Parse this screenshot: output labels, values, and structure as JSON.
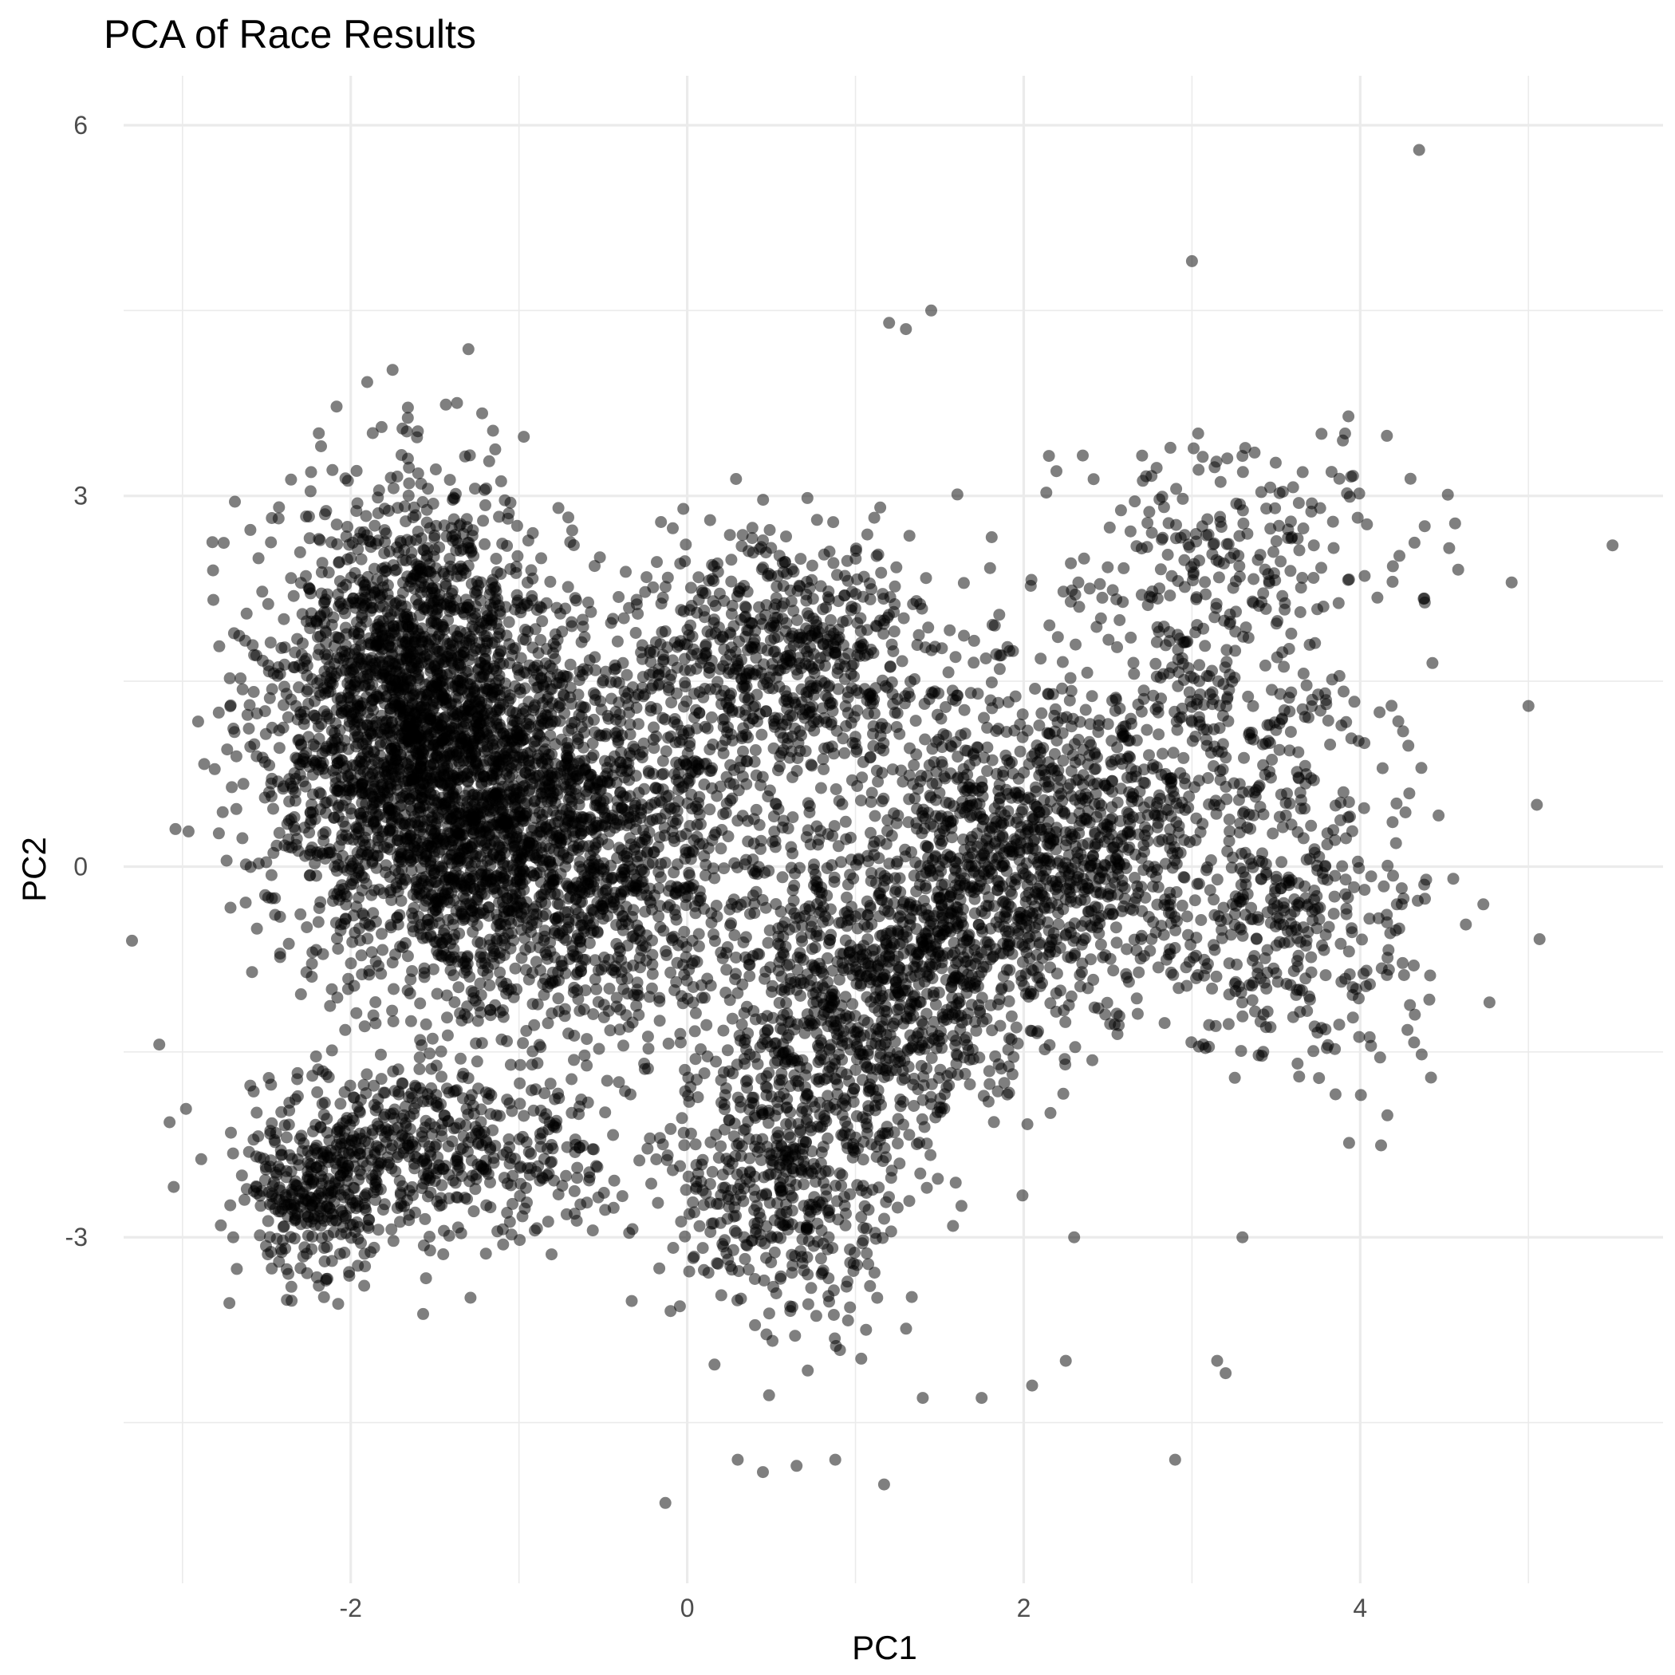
{
  "chart_data": {
    "type": "scatter",
    "title": "PCA of Race Results",
    "xlabel": "PC1",
    "ylabel": "PC2",
    "xlim": [
      -3.35,
      5.8
    ],
    "ylim": [
      -5.8,
      6.4
    ],
    "x_ticks": [
      -2,
      0,
      2,
      4
    ],
    "y_ticks": [
      -3,
      0,
      3,
      6
    ],
    "x_tick_labels": [
      "-2",
      "0",
      "2",
      "4"
    ],
    "y_tick_labels": [
      "-3",
      "0",
      "3",
      "6"
    ],
    "grid": true,
    "legend": "none",
    "point_color": "#000000",
    "point_opacity": 0.5,
    "approx_point_count": 20000,
    "clusters": [
      {
        "center": [
          -1.6,
          1.2
        ],
        "sd": [
          0.45,
          0.9
        ],
        "weight": 0.26
      },
      {
        "center": [
          -0.8,
          0.2
        ],
        "sd": [
          0.6,
          0.75
        ],
        "weight": 0.2
      },
      {
        "center": [
          -1.5,
          -2.3
        ],
        "sd": [
          0.55,
          0.35
        ],
        "weight": 0.06
      },
      {
        "center": [
          -2.2,
          -2.7
        ],
        "sd": [
          0.2,
          0.35
        ],
        "weight": 0.03
      },
      {
        "center": [
          0.6,
          -2.5
        ],
        "sd": [
          0.35,
          0.6
        ],
        "weight": 0.06
      },
      {
        "center": [
          1.1,
          -1.0
        ],
        "sd": [
          0.5,
          0.6
        ],
        "weight": 0.1
      },
      {
        "center": [
          2.0,
          0.1
        ],
        "sd": [
          0.45,
          0.55
        ],
        "weight": 0.1
      },
      {
        "center": [
          0.6,
          1.6
        ],
        "sd": [
          0.5,
          0.55
        ],
        "weight": 0.08
      },
      {
        "center": [
          3.0,
          0.8
        ],
        "sd": [
          0.55,
          0.9
        ],
        "weight": 0.06
      },
      {
        "center": [
          3.6,
          -0.6
        ],
        "sd": [
          0.4,
          0.6
        ],
        "weight": 0.03
      },
      {
        "center": [
          3.2,
          2.6
        ],
        "sd": [
          0.55,
          0.5
        ],
        "weight": 0.02
      }
    ],
    "outliers": [
      [
        4.35,
        5.8
      ],
      [
        3.0,
        4.9
      ],
      [
        5.5,
        2.6
      ],
      [
        -3.3,
        -0.6
      ],
      [
        -0.13,
        -5.15
      ],
      [
        1.17,
        -5.0
      ],
      [
        2.9,
        -4.8
      ],
      [
        0.3,
        -4.8
      ],
      [
        0.45,
        -4.9
      ],
      [
        0.65,
        -4.85
      ],
      [
        0.88,
        -4.8
      ],
      [
        1.45,
        4.5
      ],
      [
        1.3,
        4.35
      ],
      [
        1.2,
        4.4
      ],
      [
        5.05,
        0.5
      ],
      [
        5.0,
        1.3
      ],
      [
        4.9,
        2.3
      ],
      [
        3.2,
        -4.1
      ],
      [
        3.15,
        -4.0
      ],
      [
        1.4,
        -4.3
      ],
      [
        1.75,
        -4.3
      ],
      [
        2.05,
        -4.2
      ],
      [
        2.25,
        -4.0
      ],
      [
        3.3,
        -3.0
      ],
      [
        2.3,
        -3.0
      ]
    ]
  }
}
